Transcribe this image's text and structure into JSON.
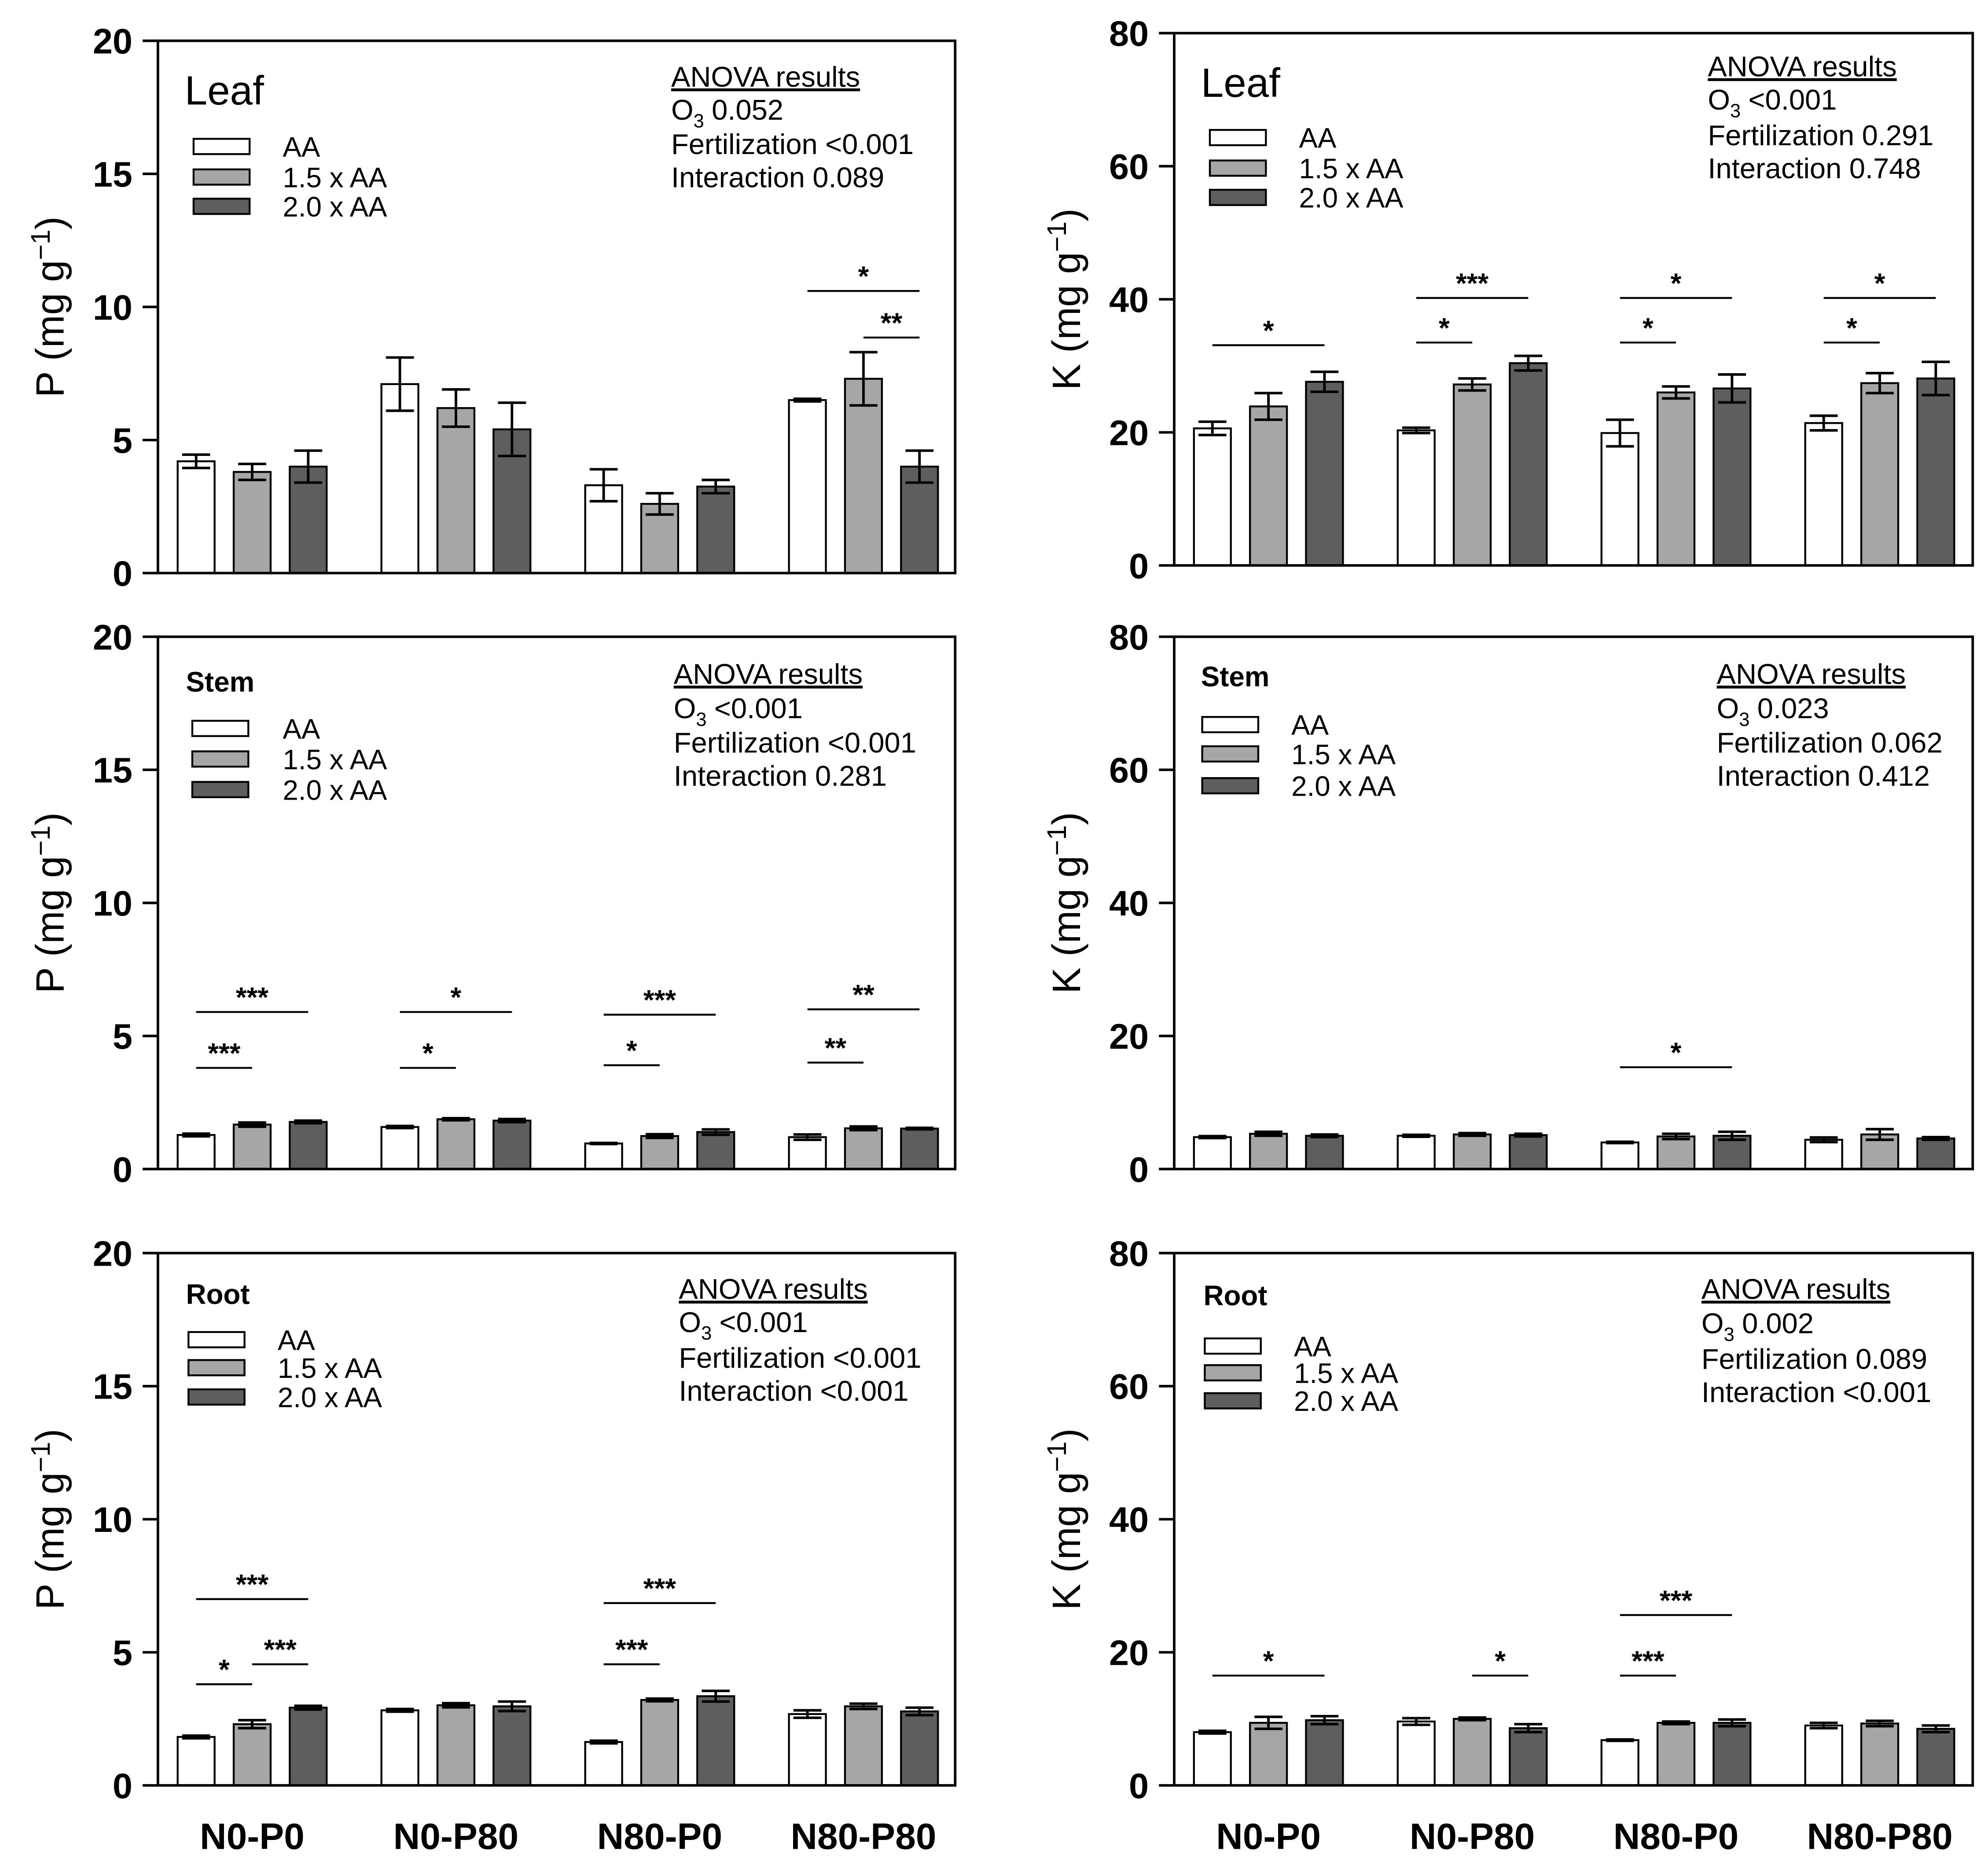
{
  "chart_data": [
    {
      "type": "bar",
      "tissue": "Leaf",
      "ylabel": {
        "main": "P (mg g",
        "sup": "−1",
        "end": ")"
      },
      "ylim": [
        0,
        20
      ],
      "yticks": [
        0,
        5,
        10,
        15,
        20
      ],
      "categories": [
        "N0-P0",
        "N0-P80",
        "N80-P0",
        "N80-P80"
      ],
      "series": [
        {
          "name": "AA",
          "color": "#ffffff",
          "values": [
            4.2,
            7.1,
            3.3,
            6.5
          ],
          "errors": [
            0.25,
            1.0,
            0.6,
            0.05
          ]
        },
        {
          "name": "1.5 x AA",
          "color": "#a6a6a8",
          "values": [
            3.8,
            6.2,
            2.6,
            7.3
          ],
          "errors": [
            0.3,
            0.7,
            0.4,
            1.0
          ]
        },
        {
          "name": "2.0 x AA",
          "color": "#5e5e5e",
          "values": [
            4.0,
            5.4,
            3.25,
            4.0
          ],
          "errors": [
            0.6,
            1.0,
            0.25,
            0.6
          ]
        }
      ],
      "anova": {
        "title": "ANOVA results",
        "o3_symbol": "O",
        "o3_sub": "3",
        "o3": "0.052",
        "fertilization_label": "Fertilization",
        "fertilization": "<0.001",
        "interaction_label": "Interaction",
        "interaction": "0.089"
      },
      "significance": [
        {
          "category": 3,
          "from": 0,
          "to": 2,
          "y": 10.6,
          "label": "*"
        },
        {
          "category": 3,
          "from": 1,
          "to": 2,
          "y": 8.85,
          "label": "**"
        }
      ]
    },
    {
      "type": "bar",
      "tissue": "Leaf",
      "ylabel": {
        "main": "K (mg g",
        "sup": "−1",
        "end": ")"
      },
      "ylim": [
        0,
        80
      ],
      "yticks": [
        0,
        20,
        40,
        60,
        80
      ],
      "categories": [
        "N0-P0",
        "N0-P80",
        "N80-P0",
        "N80-P80"
      ],
      "series": [
        {
          "name": "AA",
          "color": "#ffffff",
          "values": [
            20.6,
            20.3,
            19.9,
            21.4
          ],
          "errors": [
            1.0,
            0.4,
            2.0,
            1.1
          ]
        },
        {
          "name": "1.5 x AA",
          "color": "#a6a6a8",
          "values": [
            23.9,
            27.2,
            26.0,
            27.4
          ],
          "errors": [
            2.0,
            0.9,
            0.9,
            1.5
          ]
        },
        {
          "name": "2.0 x AA",
          "color": "#5e5e5e",
          "values": [
            27.6,
            30.4,
            26.6,
            28.1
          ],
          "errors": [
            1.5,
            1.1,
            2.1,
            2.5
          ]
        }
      ],
      "anova": {
        "title": "ANOVA results",
        "o3_symbol": "O",
        "o3_sub": "3",
        "o3": "<0.001",
        "fertilization_label": "Fertilization",
        "fertilization": "0.291",
        "interaction_label": "Interaction",
        "interaction": "0.748"
      },
      "significance": [
        {
          "category": 0,
          "from": 0,
          "to": 2,
          "y": 33.1,
          "label": "*"
        },
        {
          "category": 1,
          "from": 0,
          "to": 2,
          "y": 40.2,
          "label": "***"
        },
        {
          "category": 1,
          "from": 0,
          "to": 1,
          "y": 33.5,
          "label": "*"
        },
        {
          "category": 2,
          "from": 0,
          "to": 2,
          "y": 40.2,
          "label": "*"
        },
        {
          "category": 2,
          "from": 0,
          "to": 1,
          "y": 33.5,
          "label": "*"
        },
        {
          "category": 3,
          "from": 0,
          "to": 2,
          "y": 40.2,
          "label": "*"
        },
        {
          "category": 3,
          "from": 0,
          "to": 1,
          "y": 33.5,
          "label": "*"
        }
      ]
    },
    {
      "type": "bar",
      "tissue": "Stem",
      "ylabel": {
        "main": "P (mg g",
        "sup": "−1",
        "end": ")"
      },
      "ylim": [
        0,
        20
      ],
      "yticks": [
        0,
        5,
        10,
        15,
        20
      ],
      "categories": [
        "N0-P0",
        "N0-P80",
        "N80-P0",
        "N80-P80"
      ],
      "series": [
        {
          "name": "AA",
          "color": "#ffffff",
          "values": [
            1.28,
            1.58,
            0.96,
            1.2
          ],
          "errors": [
            0.05,
            0.04,
            0.02,
            0.1
          ]
        },
        {
          "name": "1.5 x AA",
          "color": "#a6a6a8",
          "values": [
            1.67,
            1.87,
            1.24,
            1.53
          ],
          "errors": [
            0.08,
            0.04,
            0.07,
            0.07
          ]
        },
        {
          "name": "2.0 x AA",
          "color": "#5e5e5e",
          "values": [
            1.77,
            1.82,
            1.39,
            1.52
          ],
          "errors": [
            0.05,
            0.06,
            0.1,
            0.03
          ]
        }
      ],
      "anova": {
        "title": "ANOVA results",
        "o3_symbol": "O",
        "o3_sub": "3",
        "o3": "<0.001",
        "fertilization_label": "Fertilization",
        "fertilization": "<0.001",
        "interaction_label": "Interaction",
        "interaction": "0.281"
      },
      "significance": [
        {
          "category": 0,
          "from": 0,
          "to": 2,
          "y": 5.9,
          "label": "***"
        },
        {
          "category": 0,
          "from": 0,
          "to": 1,
          "y": 3.8,
          "label": "***"
        },
        {
          "category": 1,
          "from": 0,
          "to": 2,
          "y": 5.9,
          "label": "*"
        },
        {
          "category": 1,
          "from": 0,
          "to": 1,
          "y": 3.8,
          "label": "*"
        },
        {
          "category": 2,
          "from": 0,
          "to": 2,
          "y": 5.8,
          "label": "***"
        },
        {
          "category": 2,
          "from": 0,
          "to": 1,
          "y": 3.9,
          "label": "*"
        },
        {
          "category": 3,
          "from": 0,
          "to": 2,
          "y": 6.0,
          "label": "**"
        },
        {
          "category": 3,
          "from": 0,
          "to": 1,
          "y": 4.0,
          "label": "**"
        }
      ]
    },
    {
      "type": "bar",
      "tissue": "Stem",
      "ylabel": {
        "main": "K (mg g",
        "sup": "−1",
        "end": ")"
      },
      "ylim": [
        0,
        80
      ],
      "yticks": [
        0,
        20,
        40,
        60,
        80
      ],
      "categories": [
        "N0-P0",
        "N0-P80",
        "N80-P0",
        "N80-P80"
      ],
      "series": [
        {
          "name": "AA",
          "color": "#ffffff",
          "values": [
            4.8,
            5.0,
            4.0,
            4.4
          ],
          "errors": [
            0.15,
            0.15,
            0.1,
            0.35
          ]
        },
        {
          "name": "1.5 x AA",
          "color": "#a6a6a8",
          "values": [
            5.3,
            5.2,
            4.9,
            5.2
          ],
          "errors": [
            0.3,
            0.2,
            0.4,
            0.8
          ]
        },
        {
          "name": "2.0 x AA",
          "color": "#5e5e5e",
          "values": [
            5.0,
            5.1,
            5.0,
            4.6
          ],
          "errors": [
            0.2,
            0.2,
            0.6,
            0.2
          ]
        }
      ],
      "anova": {
        "title": "ANOVA results",
        "o3_symbol": "O",
        "o3_sub": "3",
        "o3": "0.023",
        "fertilization_label": "Fertilization",
        "fertilization": "0.062",
        "interaction_label": "Interaction",
        "interaction": "0.412"
      },
      "significance": [
        {
          "category": 2,
          "from": 0,
          "to": 2,
          "y": 15.3,
          "label": "*"
        }
      ]
    },
    {
      "type": "bar",
      "tissue": "Root",
      "ylabel": {
        "main": "P (mg g",
        "sup": "−1",
        "end": ")"
      },
      "ylim": [
        0,
        20
      ],
      "yticks": [
        0,
        5,
        10,
        15,
        20
      ],
      "categories": [
        "N0-P0",
        "N0-P80",
        "N80-P0",
        "N80-P80"
      ],
      "series": [
        {
          "name": "AA",
          "color": "#ffffff",
          "values": [
            1.82,
            2.82,
            1.63,
            2.68
          ],
          "errors": [
            0.05,
            0.05,
            0.05,
            0.14
          ]
        },
        {
          "name": "1.5 x AA",
          "color": "#a6a6a8",
          "values": [
            2.3,
            3.01,
            3.21,
            2.97
          ],
          "errors": [
            0.15,
            0.08,
            0.05,
            0.1
          ]
        },
        {
          "name": "2.0 x AA",
          "color": "#5e5e5e",
          "values": [
            2.92,
            2.97,
            3.35,
            2.78
          ],
          "errors": [
            0.07,
            0.18,
            0.2,
            0.14
          ]
        }
      ],
      "anova": {
        "title": "ANOVA results",
        "o3_symbol": "O",
        "o3_sub": "3",
        "o3": "<0.001",
        "fertilization_label": "Fertilization",
        "fertilization": "<0.001",
        "interaction_label": "Interaction",
        "interaction": "<0.001"
      },
      "significance": [
        {
          "category": 0,
          "from": 0,
          "to": 2,
          "y": 7.0,
          "label": "***"
        },
        {
          "category": 0,
          "from": 0,
          "to": 1,
          "y": 3.8,
          "label": "*"
        },
        {
          "category": 0,
          "from": 1,
          "to": 2,
          "y": 4.55,
          "label": "***"
        },
        {
          "category": 2,
          "from": 0,
          "to": 2,
          "y": 6.85,
          "label": "***"
        },
        {
          "category": 2,
          "from": 0,
          "to": 1,
          "y": 4.55,
          "label": "***"
        }
      ]
    },
    {
      "type": "bar",
      "tissue": "Root",
      "ylabel": {
        "main": "K (mg g",
        "sup": "−1",
        "end": ")"
      },
      "ylim": [
        0,
        80
      ],
      "yticks": [
        0,
        20,
        40,
        60,
        80
      ],
      "categories": [
        "N0-P0",
        "N0-P80",
        "N80-P0",
        "N80-P80"
      ],
      "series": [
        {
          "name": "AA",
          "color": "#ffffff",
          "values": [
            8.0,
            9.6,
            6.8,
            9.0
          ],
          "errors": [
            0.2,
            0.5,
            0.1,
            0.4
          ]
        },
        {
          "name": "1.5 x AA",
          "color": "#a6a6a8",
          "values": [
            9.4,
            10.0,
            9.4,
            9.3
          ],
          "errors": [
            0.9,
            0.2,
            0.2,
            0.4
          ]
        },
        {
          "name": "2.0 x AA",
          "color": "#5e5e5e",
          "values": [
            9.8,
            8.6,
            9.4,
            8.5
          ],
          "errors": [
            0.6,
            0.6,
            0.5,
            0.5
          ]
        }
      ],
      "anova": {
        "title": "ANOVA results",
        "o3_symbol": "O",
        "o3_sub": "3",
        "o3": "0.002",
        "fertilization_label": "Fertilization",
        "fertilization": "0.089",
        "interaction_label": "Interaction",
        "interaction": "<0.001"
      },
      "significance": [
        {
          "category": 0,
          "from": 0,
          "to": 2,
          "y": 16.5,
          "label": "*"
        },
        {
          "category": 1,
          "from": 1,
          "to": 2,
          "y": 16.5,
          "label": "*"
        },
        {
          "category": 2,
          "from": 0,
          "to": 2,
          "y": 25.6,
          "label": "***"
        },
        {
          "category": 2,
          "from": 0,
          "to": 1,
          "y": 16.5,
          "label": "***"
        }
      ]
    }
  ]
}
